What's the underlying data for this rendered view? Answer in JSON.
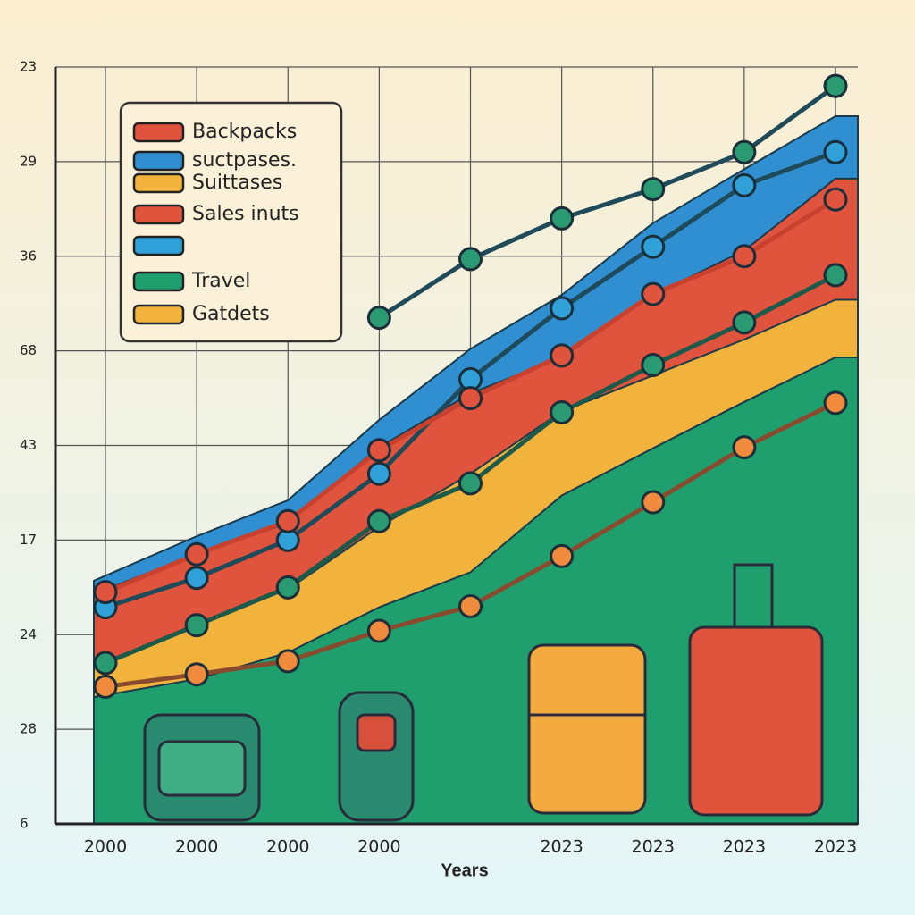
{
  "chart_data": {
    "type": "area",
    "x_label": "Years",
    "categories": [
      "2000",
      "2000",
      "2000",
      "2000",
      null,
      "2023",
      "2023",
      "2023",
      "2023"
    ],
    "ylim": [
      0,
      8
    ],
    "yticks": [
      {
        "value": 0,
        "label": "6"
      },
      {
        "value": 1,
        "label": "28"
      },
      {
        "value": 2,
        "label": "24"
      },
      {
        "value": 3,
        "label": "17"
      },
      {
        "value": 4,
        "label": "43"
      },
      {
        "value": 5,
        "label": "68"
      },
      {
        "value": 6,
        "label": "36"
      },
      {
        "value": 7,
        "label": "29"
      },
      {
        "value": 8,
        "label": "23"
      }
    ],
    "grid": true,
    "areas": [
      {
        "color": "#2f8fd0",
        "values": [
          2.57,
          3.04,
          3.42,
          4.27,
          5.02,
          5.59,
          6.35,
          6.92,
          7.48
        ]
      },
      {
        "color": "#e0533c",
        "values": [
          2.43,
          2.85,
          3.18,
          3.98,
          4.55,
          4.93,
          5.59,
          6.06,
          6.82
        ]
      },
      {
        "color": "#f2b33d",
        "values": [
          1.67,
          2.1,
          2.48,
          3.14,
          3.7,
          4.36,
          4.74,
          5.12,
          5.54
        ]
      },
      {
        "color": "#1f9e6e",
        "values": [
          1.34,
          1.53,
          1.81,
          2.29,
          2.66,
          3.47,
          3.97,
          4.46,
          4.93
        ]
      }
    ],
    "lines": [
      {
        "color": "#1e4a5a",
        "marker": "#2a9a72",
        "values": [
          null,
          null,
          null,
          5.35,
          5.97,
          6.4,
          6.71,
          7.1,
          7.8
        ]
      },
      {
        "color": "#1e4a5a",
        "marker": "#2fa0d8",
        "values": [
          2.29,
          2.6,
          3.0,
          3.7,
          4.7,
          5.45,
          6.1,
          6.75,
          7.1
        ]
      },
      {
        "color": "#c8402e",
        "marker": "#e0533c",
        "values": [
          2.45,
          2.85,
          3.2,
          3.95,
          4.5,
          4.95,
          5.6,
          6.0,
          6.6
        ]
      },
      {
        "color": "#1e5a4a",
        "marker": "#2a9a72",
        "values": [
          1.7,
          2.1,
          2.5,
          3.2,
          3.6,
          4.35,
          4.85,
          5.3,
          5.8
        ]
      },
      {
        "color": "#8a4a2e",
        "marker": "#f08a3c",
        "values": [
          1.45,
          1.58,
          1.72,
          2.04,
          2.3,
          2.83,
          3.4,
          3.98,
          4.45
        ]
      }
    ],
    "legend": [
      {
        "label": "Backpacks",
        "color": "#e0533c"
      },
      {
        "label": "suctpases.",
        "color": "#2f8fd0"
      },
      {
        "label": "Suittases",
        "color": "#f2b33d"
      },
      {
        "label": "Sales  inuts",
        "color": "#e0533c"
      },
      {
        "color": "#2fa0d8"
      },
      {
        "label": "Travel",
        "color": "#1f9e6e"
      },
      {
        "label": "Gatdets",
        "color": "#f2b33d"
      }
    ]
  }
}
